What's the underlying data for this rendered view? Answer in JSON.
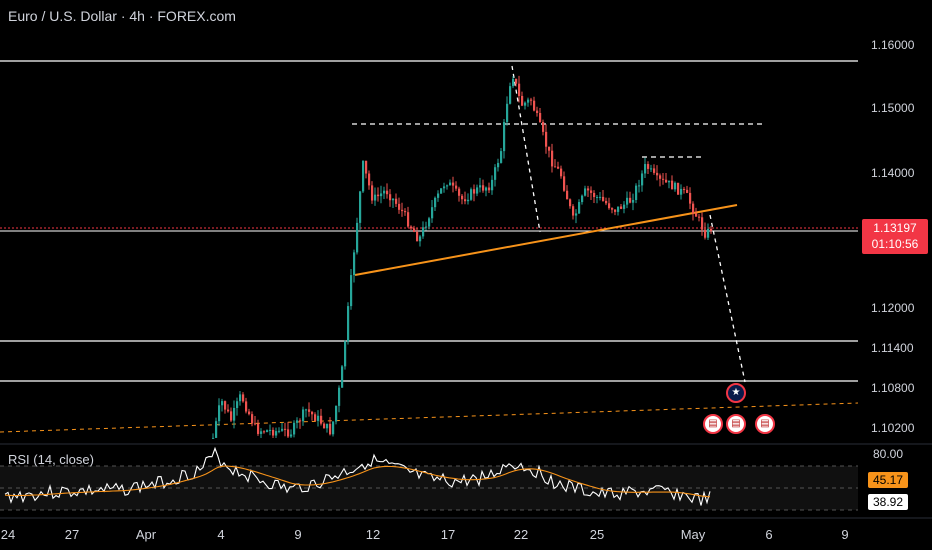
{
  "header": {
    "symbol_title": "Euro / U.S. Dollar · 4h · FOREX.com"
  },
  "price_axis": [
    "1.16000",
    "1.15000",
    "1.14000",
    "1.12000",
    "1.11400",
    "1.10800",
    "1.10200"
  ],
  "current_price": {
    "price": "1.13197",
    "countdown": "01:10:56"
  },
  "rsi": {
    "label": "RSI (14, close)",
    "level_80": "80.00",
    "rsi_ma": "45.17",
    "rsi_value": "38.92"
  },
  "x_axis": [
    "24",
    "27",
    "Apr",
    "4",
    "9",
    "12",
    "17",
    "22",
    "25",
    "May",
    "6",
    "9"
  ],
  "events": [
    "eu-flag-icon",
    "us-flag-icon",
    "us-flag-icon",
    "us-flag-icon"
  ],
  "colors": {
    "up": "#26a69a",
    "down": "#ef5350",
    "trendline": "#f7931a",
    "price_tag": "#f23645",
    "rsi_line": "#ffffff",
    "rsi_ma": "#f7931a"
  }
}
